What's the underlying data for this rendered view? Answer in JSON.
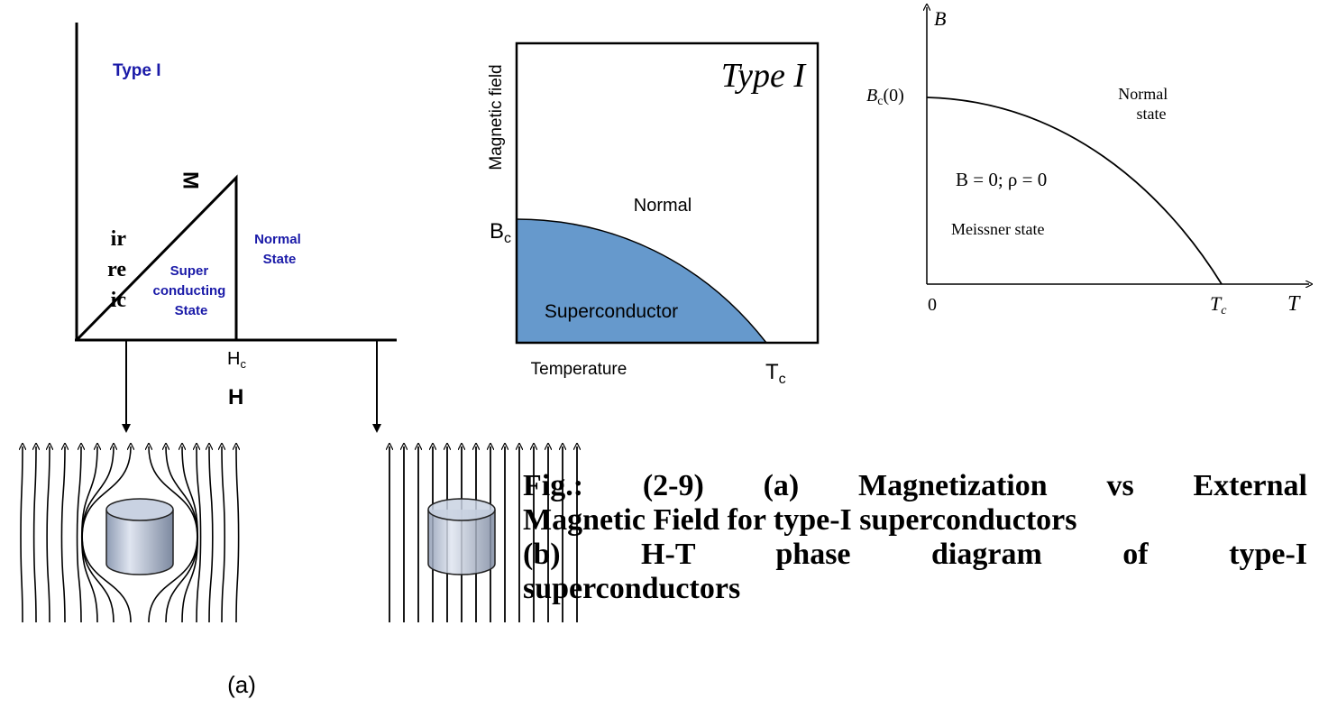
{
  "panel_a": {
    "left_fragments": [
      "ir",
      "re",
      "ic"
    ],
    "title": "Type I",
    "y_label": "M",
    "normal": [
      "Normal",
      "State"
    ],
    "super": [
      "Super",
      "conducting",
      "State"
    ],
    "hc": {
      "base": "H",
      "sub": "c"
    },
    "x_label": "H",
    "label": "(a)"
  },
  "panel_b": {
    "title": "Type I",
    "y_label": "Magnetic field",
    "normal": "Normal",
    "bc": {
      "base": "B",
      "sub": "c"
    },
    "superconductor": "Superconductor",
    "x_label": "Temperature",
    "tc": {
      "base": "T",
      "sub": "c"
    }
  },
  "panel_c": {
    "y_label": "B",
    "bc0": {
      "base": "B",
      "sub": "c",
      "suffix": "(0)"
    },
    "normal": [
      "Normal",
      "state"
    ],
    "equation": "B = 0; ρ = 0",
    "meissner": "Meissner state",
    "origin": "0",
    "tc": {
      "base": "T",
      "sub": "c"
    },
    "x_label": "T"
  },
  "caption": [
    "Fig.: (2-9) (a) Magnetization vs External",
    "Magnetic Field for type-I superconductors",
    "(b) H-T phase diagram of type-I",
    "superconductors"
  ]
}
